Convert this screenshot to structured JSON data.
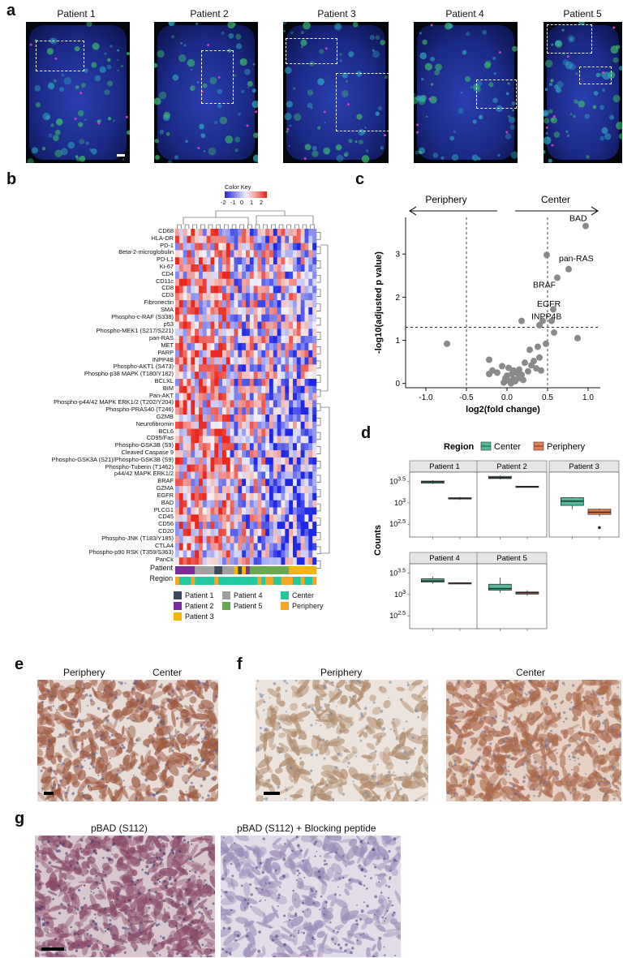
{
  "panel_labels": {
    "a": "a",
    "b": "b",
    "c": "c",
    "d": "d",
    "e": "e",
    "f": "f",
    "g": "g"
  },
  "panel_a": {
    "titles": [
      "Patient 1",
      "Patient 2",
      "Patient 3",
      "Patient 4",
      "Patient 5"
    ]
  },
  "panel_b": {
    "color_key": {
      "title": "Color Key",
      "ticks": [
        "-2",
        "-1",
        "0",
        "1",
        "2"
      ]
    },
    "rows": [
      "CD68",
      "HLA-DR",
      "PD-1",
      "Beta-2-microglobulin",
      "PD-L1",
      "Ki-67",
      "CD4",
      "CD11c",
      "CD8",
      "CD3",
      "Fibronectin",
      "SMA",
      "Phospho-c-RAF (S338)",
      "p53",
      "Phospho-MEK1 (S217/S221)",
      "pan-RAS",
      "MET",
      "PARP",
      "INPP4B",
      "Phospho-AKT1 (S473)",
      "Phospho-p38 MAPK (T180/Y182)",
      "BCLXL",
      "BIM",
      "Pan-AKT",
      "Phospho-p44/42 MAPK ERK1/2 (T202/Y204)",
      "Phospho-PRAS40 (T246)",
      "GZMB",
      "Neurofibromin",
      "BCL6",
      "CD95/Fas",
      "Phospho-GSK3B (S9)",
      "Cleaved Caspase 9",
      "Phospho-GSK3A (S21)/Phospho-GSK3B (S9)",
      "Phospho-Tuberin (T1462)",
      "p44/42 MAPK ERK1/2",
      "BRAF",
      "GZMA",
      "EGFR",
      "BAD",
      "PLCG1",
      "CD45",
      "CD56",
      "CD20",
      "Phospho-JNK (T183/Y185)",
      "CTLA4",
      "Phospho-p90 RSK  (T359/S363)",
      "PanCk"
    ],
    "annot_labels": {
      "patient": "Patient",
      "region": "Region"
    },
    "legend": [
      {
        "label": "Patient 1",
        "color": "#3d4a5c"
      },
      {
        "label": "Patient 4",
        "color": "#a0a0a0"
      },
      {
        "label": "Center",
        "color": "#22c8a0"
      },
      {
        "label": "Patient 2",
        "color": "#7b2d9c"
      },
      {
        "label": "Patient 5",
        "color": "#6aa84f"
      },
      {
        "label": "Periphery",
        "color": "#f5a623"
      },
      {
        "label": "Patient 3",
        "color": "#f2b700"
      }
    ]
  },
  "chart_data": [
    {
      "type": "scatter",
      "panel": "c",
      "title": "",
      "xlabel": "log2(fold change)",
      "ylabel": "-log10(adjusted p value)",
      "xlim": [
        -1.25,
        1.15
      ],
      "ylim": [
        -0.1,
        3.85
      ],
      "xticks": [
        "-1.0",
        "-0.5",
        "0.0",
        "0.5",
        "1.0"
      ],
      "yticks": [
        "0",
        "1",
        "2",
        "3"
      ],
      "thresholds": {
        "x": [
          -0.5,
          0.5
        ],
        "y": 1.3
      },
      "direction_labels": {
        "left": "Periphery",
        "right": "Center"
      },
      "labeled_points": [
        {
          "label": "BAD",
          "x": 0.97,
          "y": 3.65
        },
        {
          "label": "pan-RAS",
          "x": 0.76,
          "y": 2.65
        },
        {
          "label": "BRAF",
          "x": 0.62,
          "y": 2.45
        },
        {
          "label": "EGFR",
          "x": 0.57,
          "y": 1.72
        },
        {
          "label": "INPP4B",
          "x": 0.55,
          "y": 1.45
        }
      ],
      "points": [
        [
          0.97,
          3.65
        ],
        [
          0.76,
          2.65
        ],
        [
          0.62,
          2.45
        ],
        [
          0.57,
          1.72
        ],
        [
          0.55,
          1.45
        ],
        [
          0.49,
          2.98
        ],
        [
          -0.74,
          0.92
        ],
        [
          -0.22,
          0.55
        ],
        [
          0.18,
          1.45
        ],
        [
          0.4,
          1.35
        ],
        [
          0.44,
          1.45
        ],
        [
          0.58,
          1.18
        ],
        [
          0.87,
          1.05
        ],
        [
          0.48,
          0.92
        ],
        [
          0.38,
          0.85
        ],
        [
          0.28,
          0.78
        ],
        [
          0.4,
          0.6
        ],
        [
          0.36,
          0.35
        ],
        [
          0.22,
          0.48
        ],
        [
          0.3,
          0.42
        ],
        [
          0.15,
          0.32
        ],
        [
          0.26,
          0.28
        ],
        [
          0.12,
          0.25
        ],
        [
          0.18,
          0.2
        ],
        [
          -0.06,
          0.4
        ],
        [
          0.02,
          0.36
        ],
        [
          0.08,
          0.3
        ],
        [
          0.06,
          0.22
        ],
        [
          0.0,
          0.18
        ],
        [
          -0.02,
          0.12
        ],
        [
          0.03,
          0.05
        ],
        [
          0.08,
          0.1
        ],
        [
          -0.12,
          0.25
        ],
        [
          -0.18,
          0.3
        ],
        [
          -0.22,
          0.22
        ],
        [
          0.1,
          0.05
        ],
        [
          0.14,
          0.12
        ],
        [
          0.2,
          0.08
        ],
        [
          0.33,
          0.52
        ],
        [
          0.42,
          0.3
        ],
        [
          0.05,
          0.0
        ],
        [
          -0.04,
          0.02
        ]
      ]
    },
    {
      "type": "box",
      "panel": "d",
      "title": "",
      "ylabel": "Counts",
      "legend_title": "Region",
      "series": [
        {
          "name": "Center",
          "color": "#4fb99a"
        },
        {
          "name": "Periphery",
          "color": "#e87d4f"
        }
      ],
      "y_scale": "log10",
      "ylim": [
        2.2,
        3.72
      ],
      "yticks": [
        {
          "base": "10",
          "exp": "3.5",
          "value": 3.5
        },
        {
          "base": "10",
          "exp": "3",
          "value": 3.0
        },
        {
          "base": "10",
          "exp": "2.5",
          "value": 2.5
        }
      ],
      "facets": [
        {
          "name": "Patient 1",
          "boxes": [
            {
              "series": "Center",
              "min": 3.44,
              "q1": 3.46,
              "median": 3.49,
              "q3": 3.51,
              "max": 3.53
            },
            {
              "series": "Periphery",
              "min": 3.07,
              "q1": 3.09,
              "median": 3.1,
              "q3": 3.12,
              "max": 3.14
            }
          ]
        },
        {
          "name": "Patient 2",
          "boxes": [
            {
              "series": "Center",
              "min": 3.55,
              "q1": 3.57,
              "median": 3.59,
              "q3": 3.62,
              "max": 3.64
            },
            {
              "series": "Periphery",
              "min": 3.36,
              "q1": 3.37,
              "median": 3.38,
              "q3": 3.39,
              "max": 3.4
            }
          ]
        },
        {
          "name": "Patient 3",
          "boxes": [
            {
              "series": "Center",
              "min": 2.85,
              "q1": 2.94,
              "median": 3.04,
              "q3": 3.12,
              "max": 3.14
            },
            {
              "series": "Periphery",
              "min": 2.68,
              "q1": 2.73,
              "median": 2.78,
              "q3": 2.85,
              "max": 2.87,
              "outliers": [
                2.42
              ]
            }
          ]
        },
        {
          "name": "Patient 4",
          "boxes": [
            {
              "series": "Center",
              "min": 3.25,
              "q1": 3.29,
              "median": 3.32,
              "q3": 3.37,
              "max": 3.42
            },
            {
              "series": "Periphery",
              "min": 3.26,
              "q1": 3.265,
              "median": 3.27,
              "q3": 3.275,
              "max": 3.28
            }
          ]
        },
        {
          "name": "Patient 5",
          "boxes": [
            {
              "series": "Center",
              "min": 3.04,
              "q1": 3.1,
              "median": 3.14,
              "q3": 3.24,
              "max": 3.4
            },
            {
              "series": "Periphery",
              "min": 2.97,
              "q1": 3.01,
              "median": 3.04,
              "q3": 3.06,
              "max": 3.1
            }
          ]
        }
      ]
    }
  ],
  "panel_e": {
    "left": "Periphery",
    "right": "Center"
  },
  "panel_f": {
    "left": "Periphery",
    "right": "Center"
  },
  "panel_g": {
    "left": "pBAD (S112)",
    "right": "pBAD (S112) + Blocking peptide"
  }
}
